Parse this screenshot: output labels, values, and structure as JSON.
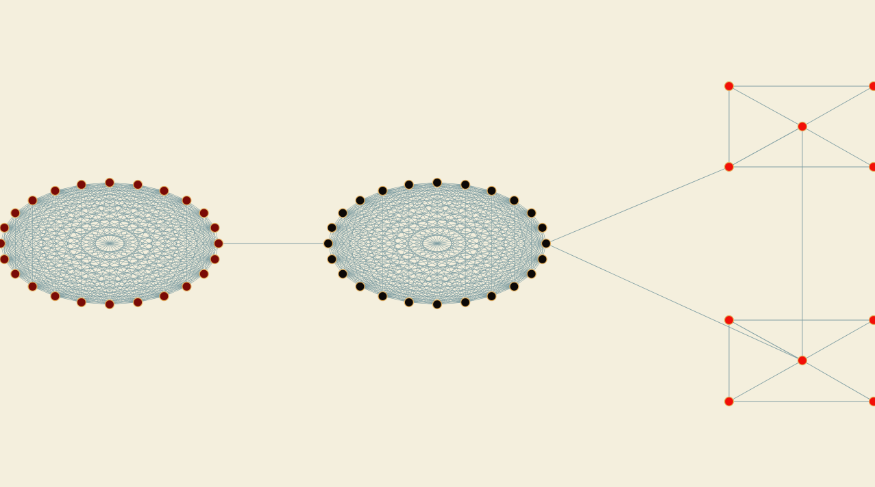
{
  "canvas": {
    "background": "#f4efdd"
  },
  "style": {
    "edge_color": "#7f9ea3",
    "cluster_a_node_color": "#7a0a06",
    "cluster_b_node_color": "#0c0806",
    "star_node_color": "#f20f08",
    "node_outline_color": "#e3b060"
  },
  "graph": {
    "clusters": [
      {
        "id": "cluster-a",
        "node_count": 24,
        "complete": true,
        "color_key": "cluster_a_node_color"
      },
      {
        "id": "cluster-b",
        "node_count": 24,
        "complete": true,
        "color_key": "cluster_b_node_color"
      }
    ],
    "stars": [
      {
        "id": "star-top",
        "leaf_count": 4,
        "color_key": "star_node_color"
      },
      {
        "id": "star-bottom",
        "leaf_count": 4,
        "color_key": "star_node_color"
      }
    ],
    "bridges": [
      {
        "from": "cluster-a",
        "to": "cluster-b"
      },
      {
        "from": "cluster-b",
        "to": "star-top"
      },
      {
        "from": "cluster-b",
        "to": "star-bottom"
      },
      {
        "from": "star-top",
        "to": "star-bottom"
      }
    ]
  }
}
